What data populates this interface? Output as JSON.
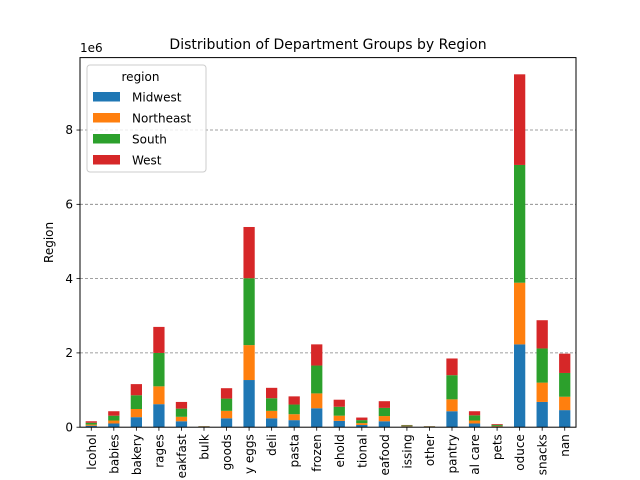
{
  "chart_data": {
    "type": "bar",
    "stacked": true,
    "title": "Distribution of Department Groups by Region",
    "xlabel": "",
    "ylabel": "Region",
    "y_offset_label": "1e6",
    "ylim": [
      0,
      9950000
    ],
    "yticks": [
      0,
      2000000,
      4000000,
      6000000,
      8000000
    ],
    "ytick_labels": [
      "0",
      "2",
      "4",
      "6",
      "8"
    ],
    "grid": "y-dashed",
    "legend": {
      "title": "region",
      "placement": "top-left"
    },
    "categories": [
      "alcohol",
      "babies",
      "bakery",
      "beverages",
      "breakfast",
      "bulk",
      "canned goods",
      "dairy eggs",
      "deli",
      "dry goods pasta",
      "frozen",
      "household",
      "international",
      "meat seafood",
      "missing",
      "other",
      "pantry",
      "personal care",
      "pets",
      "produce",
      "snacks",
      "nan"
    ],
    "category_labels": [
      "lcohol",
      "babies",
      "bakery",
      "rages",
      "eakfast",
      "bulk",
      "goods",
      "y eggs",
      "deli",
      "pasta",
      "frozen",
      "ehold",
      "tional",
      "eafood",
      "issing",
      "other",
      "pantry",
      "al care",
      "pets",
      "oduce",
      "snacks",
      "nan"
    ],
    "series": [
      {
        "name": "Midwest",
        "color": "#1f77b4",
        "values": [
          40000,
          100000,
          270000,
          620000,
          160000,
          10000,
          240000,
          1270000,
          240000,
          190000,
          510000,
          170000,
          60000,
          160000,
          20000,
          10000,
          430000,
          100000,
          20000,
          2230000,
          680000,
          460000
        ]
      },
      {
        "name": "Northeast",
        "color": "#ff7f0e",
        "values": [
          30000,
          80000,
          220000,
          480000,
          120000,
          5000,
          200000,
          940000,
          200000,
          160000,
          400000,
          140000,
          50000,
          140000,
          10000,
          5000,
          320000,
          80000,
          15000,
          1660000,
          520000,
          360000
        ]
      },
      {
        "name": "South",
        "color": "#2ca02c",
        "values": [
          50000,
          130000,
          370000,
          900000,
          220000,
          10000,
          330000,
          1800000,
          340000,
          260000,
          750000,
          240000,
          80000,
          220000,
          20000,
          10000,
          650000,
          140000,
          30000,
          3170000,
          920000,
          640000
        ]
      },
      {
        "name": "West",
        "color": "#d62728",
        "values": [
          40000,
          120000,
          300000,
          700000,
          180000,
          5000,
          280000,
          1380000,
          280000,
          220000,
          570000,
          190000,
          70000,
          180000,
          10000,
          5000,
          450000,
          110000,
          20000,
          2440000,
          760000,
          520000
        ]
      }
    ]
  }
}
